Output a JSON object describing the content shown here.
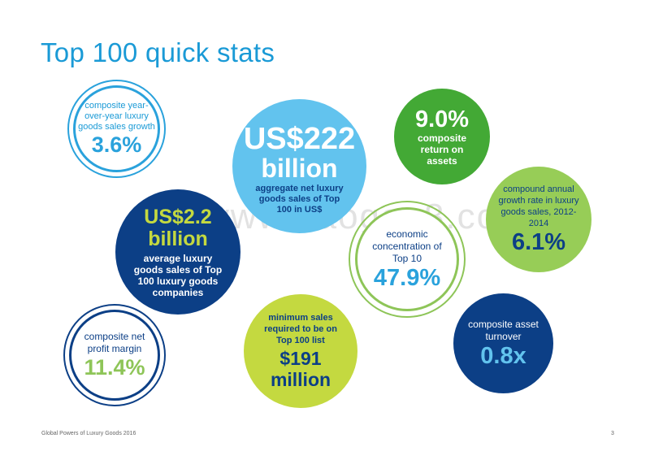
{
  "page": {
    "title": "Top 100 quick stats",
    "footer": "Global Powers of Luxury Goods 2016",
    "page_number": "3",
    "watermark": "www.baogao8.com"
  },
  "stats": {
    "growth": {
      "label": "composite year-over-year luxury goods sales growth",
      "value": "3.6%"
    },
    "aggregate": {
      "value_line1": "US$222",
      "value_line2": "billion",
      "label": "aggregate net luxury goods sales of Top 100 in US$"
    },
    "roa": {
      "value": "9.0%",
      "label": "composite return on assets"
    },
    "cagr": {
      "label": "compound annual growth rate in luxury goods sales, 2012-2014",
      "value": "6.1%"
    },
    "average": {
      "value_line1": "US$2.2",
      "value_line2": "billion",
      "label": "average luxury goods sales of Top 100 luxury goods companies"
    },
    "concentration": {
      "label": "economic concentration of Top 10",
      "value": "47.9%"
    },
    "margin": {
      "label": "composite net profit margin",
      "value": "11.4%"
    },
    "minimum": {
      "label": "minimum sales required to be on Top 100 list",
      "value_line1": "$191",
      "value_line2": "million"
    },
    "turnover": {
      "label": "composite asset turnover",
      "value": "0.8x"
    }
  },
  "colors": {
    "title_blue": "#1a9ad6",
    "light_blue": "#62c3ee",
    "dark_blue": "#0c3f86",
    "green": "#43a935",
    "light_green": "#97cd57",
    "lime": "#c4d940",
    "ring_blue": "#2aa2dc",
    "ring_green": "#8ec558"
  }
}
